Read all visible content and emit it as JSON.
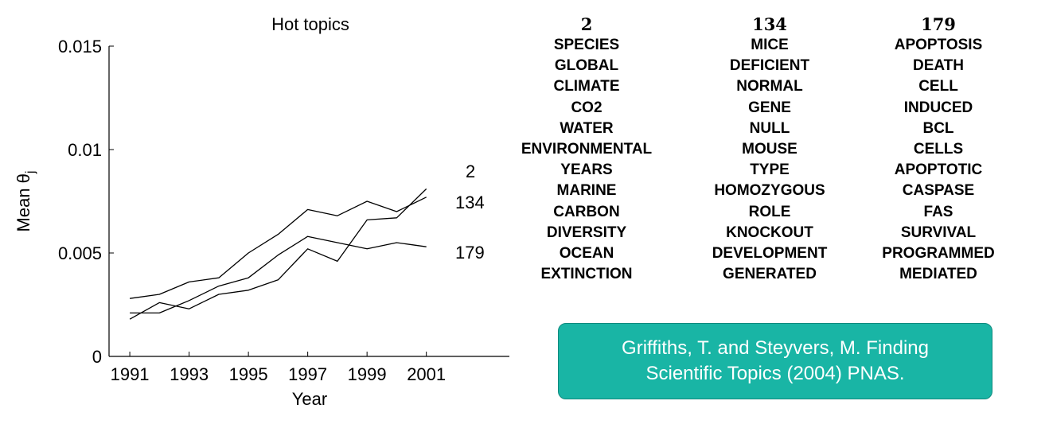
{
  "chart_data": {
    "type": "line",
    "title": "Hot topics",
    "xlabel": "Year",
    "ylabel_main": "Mean θ",
    "ylabel_sub": "j",
    "xlim": [
      1990.3,
      2003.8
    ],
    "ylim": [
      0,
      0.015
    ],
    "x_ticks": [
      1991,
      1993,
      1995,
      1997,
      1999,
      2001
    ],
    "x_tick_labels": [
      "1991",
      "1993",
      "1995",
      "1997",
      "1999",
      "2001"
    ],
    "y_ticks": [
      0,
      0.005,
      0.01,
      0.015
    ],
    "y_tick_labels": [
      "0",
      "0.005",
      "0.01",
      "0.015"
    ],
    "x": [
      1991,
      1992,
      1993,
      1994,
      1995,
      1996,
      1997,
      1998,
      1999,
      2000,
      2001
    ],
    "series": [
      {
        "name": "2",
        "values": [
          0.0028,
          0.003,
          0.0036,
          0.0038,
          0.005,
          0.0059,
          0.0071,
          0.0068,
          0.0075,
          0.007,
          0.0077
        ]
      },
      {
        "name": "134",
        "values": [
          0.0018,
          0.0026,
          0.0023,
          0.003,
          0.0032,
          0.0037,
          0.0052,
          0.0046,
          0.0066,
          0.0067,
          0.0081
        ]
      },
      {
        "name": "179",
        "values": [
          0.0021,
          0.0021,
          0.0027,
          0.0034,
          0.0038,
          0.0049,
          0.0058,
          0.0055,
          0.0052,
          0.0055,
          0.0053
        ]
      }
    ],
    "line_color": "#000000"
  },
  "topics": [
    {
      "id": "2",
      "words": [
        "SPECIES",
        "GLOBAL",
        "CLIMATE",
        "CO2",
        "WATER",
        "ENVIRONMENTAL",
        "YEARS",
        "MARINE",
        "CARBON",
        "DIVERSITY",
        "OCEAN",
        "EXTINCTION"
      ]
    },
    {
      "id": "134",
      "words": [
        "MICE",
        "DEFICIENT",
        "NORMAL",
        "GENE",
        "NULL",
        "MOUSE",
        "TYPE",
        "HOMOZYGOUS",
        "ROLE",
        "KNOCKOUT",
        "DEVELOPMENT",
        "GENERATED"
      ]
    },
    {
      "id": "179",
      "words": [
        "APOPTOSIS",
        "DEATH",
        "CELL",
        "INDUCED",
        "BCL",
        "CELLS",
        "APOPTOTIC",
        "CASPASE",
        "FAS",
        "SURVIVAL",
        "PROGRAMMED",
        "MEDIATED"
      ]
    }
  ],
  "citation": {
    "line1": "Griffiths, T. and Steyvers, M. Finding",
    "line2": "Scientific Topics (2004) PNAS."
  },
  "colors": {
    "citation_bg": "#19b5a5",
    "citation_border": "#0f8a7e",
    "citation_text": "#ffffff"
  }
}
